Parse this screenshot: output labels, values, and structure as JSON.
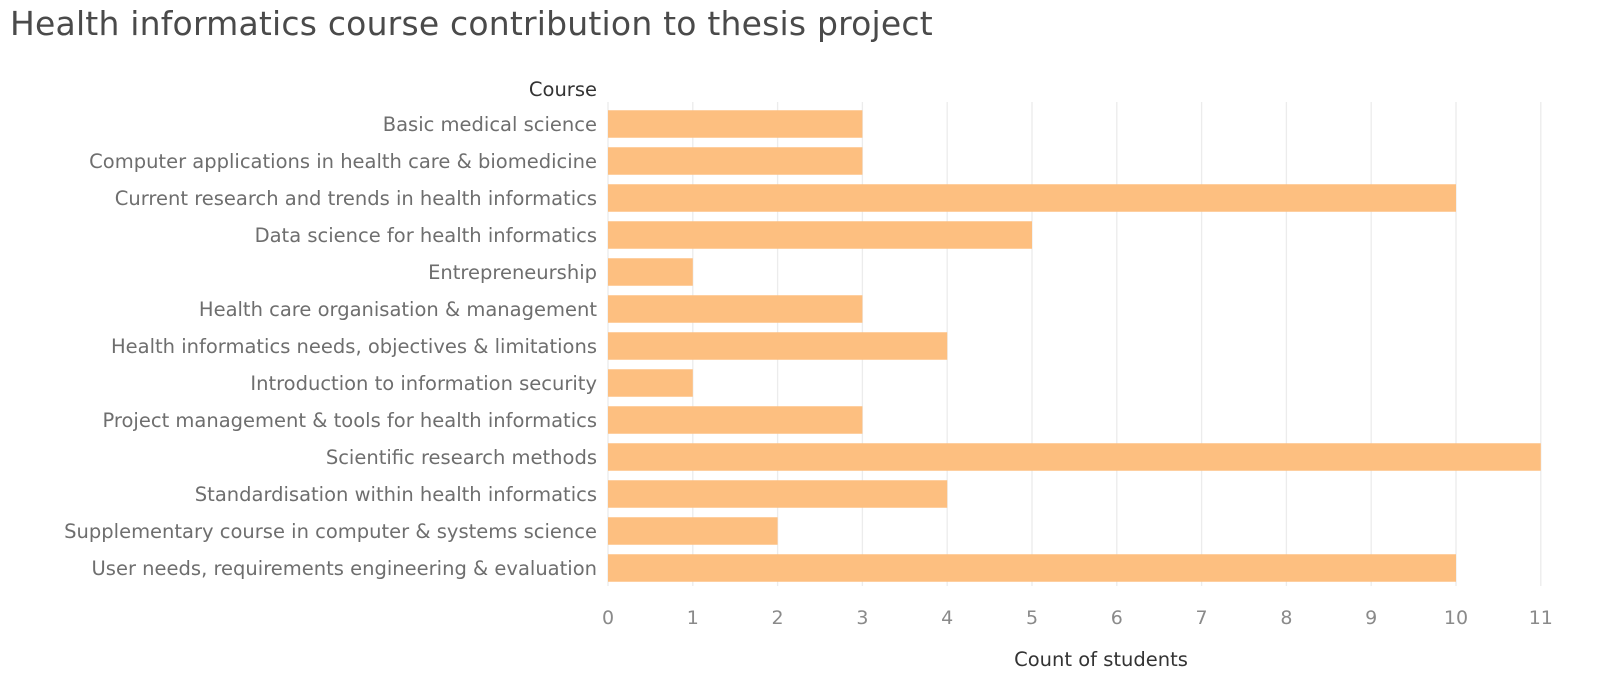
{
  "chart_data": {
    "type": "bar",
    "orientation": "horizontal",
    "title": "Health informatics course contribution to thesis project",
    "row_header": "Course",
    "xlabel": "Count of students",
    "categories": [
      "Basic medical science",
      "Computer applications in health care & biomedicine",
      "Current research and trends in health informatics",
      "Data science for health informatics",
      "Entrepreneurship",
      "Health care organisation & management",
      "Health informatics needs, objectives & limitations",
      "Introduction to information security",
      "Project management & tools for health informatics",
      "Scientific research methods",
      "Standardisation within health informatics",
      "Supplementary course in computer & systems science",
      "User needs, requirements engineering & evaluation"
    ],
    "values": [
      3,
      3,
      10,
      5,
      1,
      3,
      4,
      1,
      3,
      11,
      4,
      2,
      10
    ],
    "xticks": [
      0,
      1,
      2,
      3,
      4,
      5,
      6,
      7,
      8,
      9,
      10,
      11
    ],
    "xlim": [
      0,
      11.6
    ],
    "grid": true,
    "colors": {
      "bar": "#fdbf80"
    }
  }
}
